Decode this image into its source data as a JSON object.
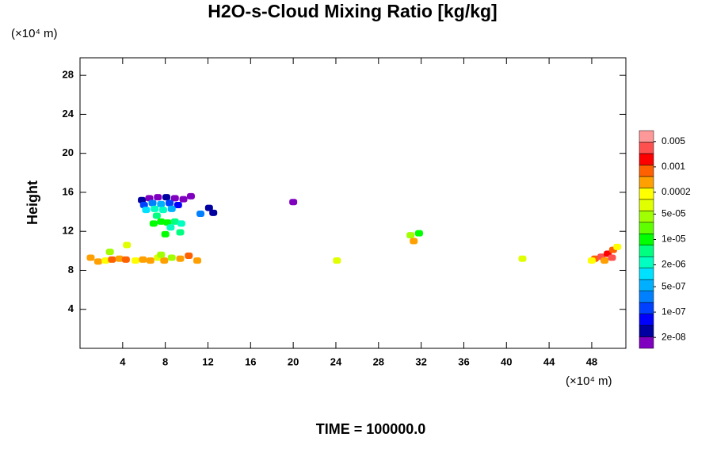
{
  "chart_data": {
    "type": "contour",
    "title": "H2O-s-Cloud Mixing Ratio [kg/kg]",
    "y_unit": "(×10⁴ m)",
    "x_unit": "(×10⁴ m)",
    "ylabel": "Height",
    "annotation": "TIME = 100000.0",
    "xlim": [
      0,
      51.2
    ],
    "ylim": [
      0,
      29.8
    ],
    "xticks": [
      4,
      8,
      12,
      16,
      20,
      24,
      28,
      32,
      36,
      40,
      44,
      48
    ],
    "yticks": [
      4,
      8,
      12,
      16,
      20,
      24,
      28
    ],
    "x": [
      5.8,
      6.5,
      7.3,
      8.1,
      8.9,
      9.7,
      10.4,
      6.0,
      6.8,
      7.6,
      8.4,
      9.2,
      6.2,
      7.0,
      7.8,
      8.6,
      7.2,
      7.6,
      8.2,
      8.9,
      6.9,
      9.5,
      8.5,
      8.0,
      9.4,
      11.3,
      12.1,
      12.5,
      1.0,
      1.7,
      2.4,
      3.0,
      3.7,
      4.3,
      4.4,
      5.2,
      5.9,
      6.6,
      7.3,
      7.9,
      8.6,
      9.4,
      10.2,
      11.0,
      2.8,
      7.6,
      20.0,
      24.1,
      31.0,
      31.3,
      31.8,
      41.5,
      48.3,
      48.9,
      49.5,
      50.0,
      50.4,
      49.2,
      48.0,
      49.9
    ],
    "y": [
      15.2,
      15.4,
      15.5,
      15.5,
      15.4,
      15.3,
      15.6,
      14.7,
      14.9,
      14.8,
      14.9,
      14.7,
      14.2,
      14.3,
      14.2,
      14.3,
      13.6,
      13.0,
      12.9,
      13.0,
      12.8,
      12.8,
      12.4,
      11.7,
      11.9,
      13.8,
      14.4,
      13.9,
      9.3,
      8.9,
      9.0,
      9.1,
      9.2,
      9.1,
      10.6,
      9.0,
      9.1,
      9.0,
      9.3,
      9.0,
      9.3,
      9.2,
      9.5,
      9.0,
      9.9,
      9.6,
      15.0,
      9.0,
      11.6,
      11.0,
      11.8,
      9.2,
      9.2,
      9.4,
      9.7,
      10.1,
      10.4,
      9.0,
      9.0,
      9.3
    ],
    "values": [
      3e-08,
      2e-08,
      2e-08,
      3e-08,
      2e-08,
      2e-08,
      2e-08,
      1e-07,
      2e-07,
      5e-07,
      1e-07,
      5e-08,
      1e-06,
      3e-06,
      2e-06,
      5e-07,
      5e-06,
      1e-05,
      1e-05,
      5e-06,
      1e-05,
      2e-06,
      3e-06,
      1e-05,
      5e-06,
      3e-07,
      3e-08,
      3e-08,
      0.0003,
      0.0005,
      0.0002,
      0.001,
      0.0003,
      0.0008,
      0.0001,
      0.0002,
      0.0005,
      0.0003,
      0.0001,
      0.0005,
      5e-05,
      0.0003,
      0.0008,
      0.0003,
      5e-05,
      5e-05,
      1.5e-08,
      0.0001,
      5e-05,
      0.0003,
      1e-05,
      0.0001,
      0.001,
      0.003,
      0.002,
      0.0008,
      0.0002,
      0.0005,
      0.0002,
      0.004
    ],
    "clim": [
      1e-08,
      0.01
    ],
    "color_log": true,
    "colors": [
      "#8000c0",
      "#0000a0",
      "#0000ff",
      "#0040ff",
      "#0080ff",
      "#00b0ff",
      "#00e0ff",
      "#00ffc0",
      "#00ff80",
      "#00ff00",
      "#60ff00",
      "#a0ff00",
      "#e0ff00",
      "#ffff00",
      "#ffa000",
      "#ff6000",
      "#ff0000",
      "#ff5050",
      "#ff9999"
    ],
    "cticks": [
      {
        "value": 2e-08,
        "label": "2e-08"
      },
      {
        "value": 1e-07,
        "label": "1e-07"
      },
      {
        "value": 5e-07,
        "label": "5e-07"
      },
      {
        "value": 2e-06,
        "label": "2e-06"
      },
      {
        "value": 1e-05,
        "label": "1e-05"
      },
      {
        "value": 5e-05,
        "label": "5e-05"
      },
      0.0002,
      0.001,
      0.005
    ]
  }
}
